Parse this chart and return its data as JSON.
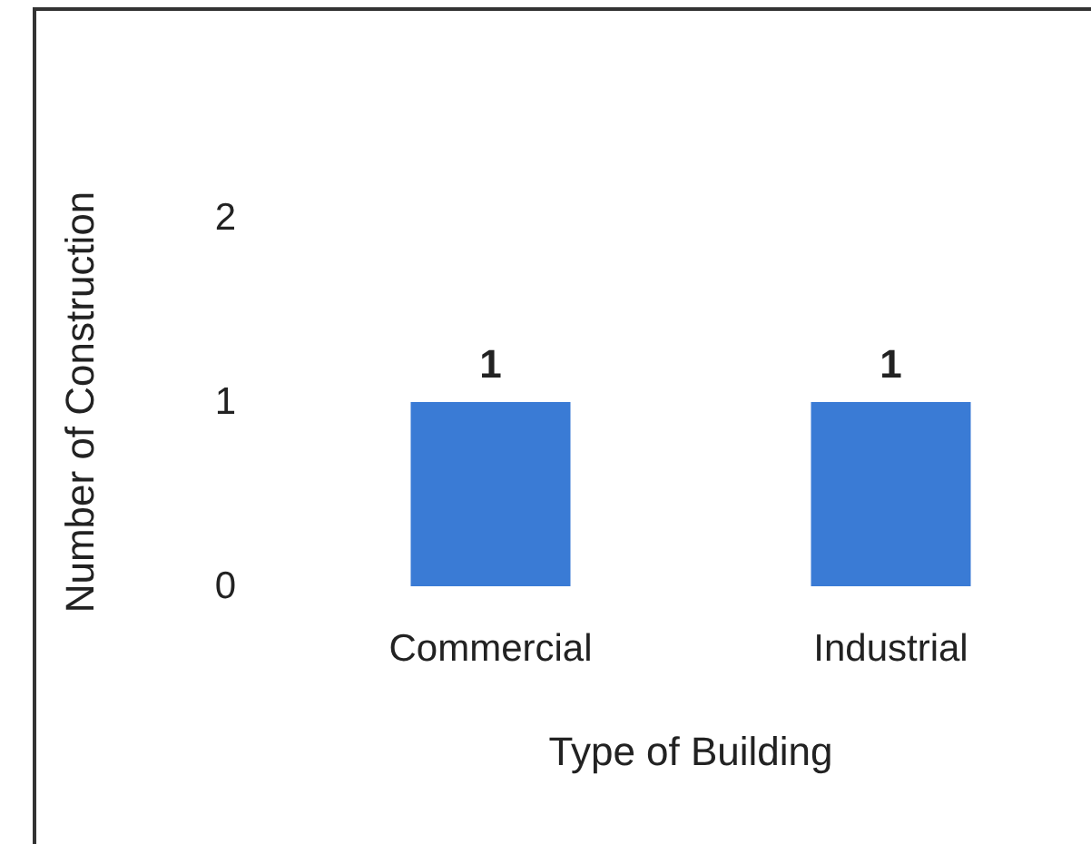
{
  "chart_data": {
    "type": "bar",
    "xlabel": "Type of Building",
    "ylabel": "Number of Construction",
    "categories": [
      "Commercial",
      "Industrial"
    ],
    "values": [
      1,
      1
    ],
    "color": "#3a7bd5",
    "ylim": [
      0,
      2
    ],
    "yticks": [
      0,
      1,
      2
    ],
    "grid": false,
    "data_labels": true
  }
}
